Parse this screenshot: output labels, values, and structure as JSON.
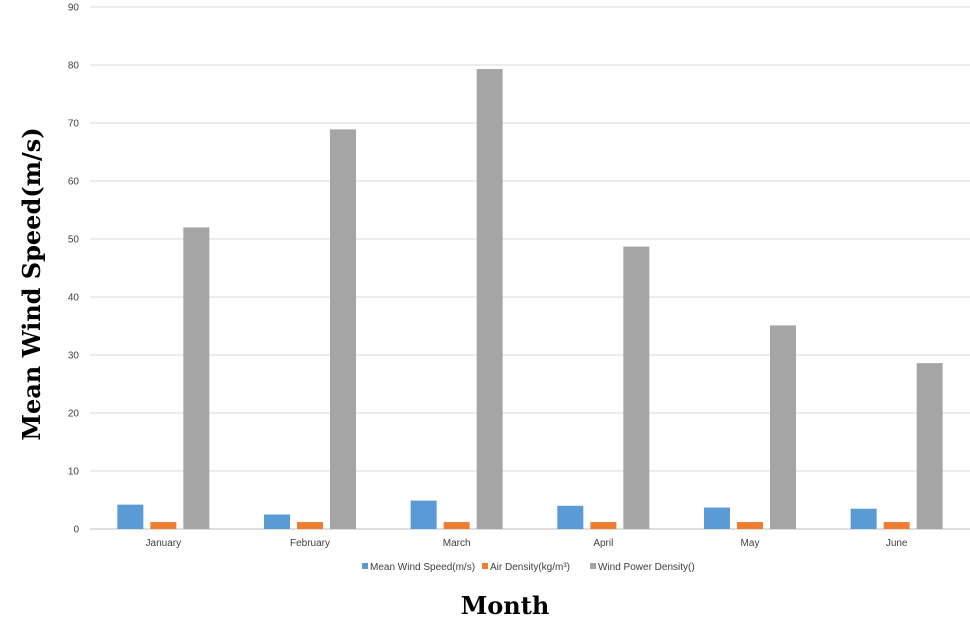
{
  "chart_data": {
    "type": "bar",
    "categories": [
      "January",
      "February",
      "March",
      "April",
      "May",
      "June"
    ],
    "series": [
      {
        "name": "Mean Wind Speed(m/s)",
        "color": "#5B9BD5",
        "values": [
          4.2,
          2.5,
          4.9,
          4.0,
          3.7,
          3.5
        ]
      },
      {
        "name": "Air Density(kg/m³)",
        "color": "#ED7D31",
        "values": [
          1.2,
          1.2,
          1.2,
          1.2,
          1.2,
          1.2
        ]
      },
      {
        "name": "Wind Power Density()",
        "color": "#A5A5A5",
        "values": [
          52.0,
          68.9,
          79.3,
          48.7,
          35.1,
          28.6
        ]
      }
    ],
    "xlabel": "Month",
    "ylabel": "Mean Wind Speed(m/s)",
    "ylim": [
      0,
      90
    ],
    "yticks": [
      "0",
      "10",
      "20",
      "30",
      "40",
      "50",
      "60",
      "70",
      "80",
      "90"
    ],
    "grid": true,
    "legend_position": "bottom"
  }
}
